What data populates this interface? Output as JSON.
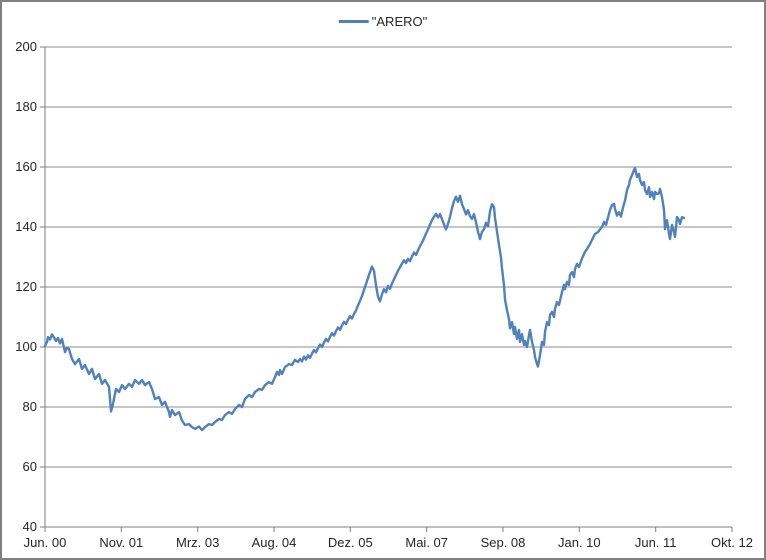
{
  "colors": {
    "line": "#4F81BD",
    "gridline": "#8E8E8E",
    "axis": "#7F7F7F",
    "border": "#7F7F7F",
    "text": "#262626",
    "background": "#FFFFFF"
  },
  "legend": {
    "label": "\"ARERO\""
  },
  "chart_data": {
    "type": "line",
    "title": "",
    "legend_position": "top-center",
    "grid": "horizontal",
    "y_axis": {
      "min": 40,
      "max": 200,
      "tick_interval": 20,
      "ticks": [
        200,
        180,
        160,
        140,
        120,
        100,
        80,
        60,
        40
      ]
    },
    "x_axis": {
      "unit": "time position along axis (0 = Jun 2000 ... 687 = Okt 2012)",
      "tick_positions": [
        0,
        76.3,
        152.7,
        229,
        305.3,
        381.7,
        458,
        534.3,
        610.7,
        687
      ],
      "tick_labels": [
        "Jun. 00",
        "Nov. 01",
        "Mrz. 03",
        "Aug. 04",
        "Dez. 05",
        "Mai. 07",
        "Sep. 08",
        "Jan. 10",
        "Jun. 11",
        "Okt. 12"
      ]
    },
    "series": [
      {
        "name": "\"ARERO\"",
        "color": "#4F81BD",
        "points": [
          [
            0,
            100.4
          ],
          [
            2,
            101.7
          ],
          [
            3,
            103.3
          ],
          [
            5,
            102.5
          ],
          [
            7,
            104.2
          ],
          [
            9,
            103.2
          ],
          [
            11,
            102.0
          ],
          [
            13,
            103.0
          ],
          [
            15,
            101.2
          ],
          [
            17,
            102.7
          ],
          [
            20,
            98.3
          ],
          [
            22,
            99.8
          ],
          [
            24,
            99.3
          ],
          [
            27,
            96.0
          ],
          [
            30,
            94.3
          ],
          [
            34,
            96.0
          ],
          [
            37,
            92.7
          ],
          [
            40,
            94.0
          ],
          [
            44,
            91.0
          ],
          [
            47,
            92.7
          ],
          [
            50,
            89.3
          ],
          [
            54,
            91.0
          ],
          [
            57,
            87.7
          ],
          [
            60,
            89.0
          ],
          [
            64,
            86.7
          ],
          [
            66,
            78.5
          ],
          [
            68,
            81.0
          ],
          [
            69,
            82.7
          ],
          [
            71,
            86.0
          ],
          [
            74,
            85.0
          ],
          [
            77,
            87.3
          ],
          [
            80,
            86.0
          ],
          [
            84,
            87.7
          ],
          [
            87,
            86.7
          ],
          [
            90,
            89.0
          ],
          [
            94,
            87.7
          ],
          [
            97,
            89.0
          ],
          [
            100,
            87.3
          ],
          [
            104,
            88.3
          ],
          [
            107,
            86.0
          ],
          [
            110,
            82.7
          ],
          [
            114,
            83.3
          ],
          [
            117,
            80.7
          ],
          [
            120,
            81.7
          ],
          [
            124,
            78.3
          ],
          [
            125,
            76.7
          ],
          [
            127,
            79.0
          ],
          [
            130,
            77.3
          ],
          [
            134,
            78.3
          ],
          [
            137,
            75.5
          ],
          [
            140,
            74.0
          ],
          [
            144,
            74.3
          ],
          [
            147,
            73.3
          ],
          [
            150,
            72.7
          ],
          [
            154,
            73.5
          ],
          [
            157,
            72.3
          ],
          [
            160,
            73.3
          ],
          [
            164,
            74.3
          ],
          [
            167,
            74.0
          ],
          [
            170,
            75.0
          ],
          [
            174,
            76.0
          ],
          [
            177,
            75.7
          ],
          [
            180,
            77.3
          ],
          [
            184,
            78.3
          ],
          [
            187,
            77.7
          ],
          [
            190,
            79.3
          ],
          [
            194,
            80.7
          ],
          [
            197,
            80.0
          ],
          [
            200,
            82.7
          ],
          [
            204,
            84.0
          ],
          [
            207,
            83.3
          ],
          [
            210,
            85.0
          ],
          [
            214,
            86.0
          ],
          [
            217,
            85.7
          ],
          [
            220,
            87.3
          ],
          [
            224,
            88.3
          ],
          [
            227,
            87.7
          ],
          [
            230,
            90.0
          ],
          [
            232,
            91.7
          ],
          [
            234,
            90.7
          ],
          [
            235,
            92.3
          ],
          [
            237,
            91.0
          ],
          [
            240,
            93.3
          ],
          [
            244,
            94.3
          ],
          [
            247,
            94.0
          ],
          [
            250,
            95.7
          ],
          [
            253,
            95.0
          ],
          [
            255,
            96.0
          ],
          [
            257,
            95.2
          ],
          [
            259,
            96.8
          ],
          [
            261,
            95.8
          ],
          [
            263,
            97.2
          ],
          [
            265,
            96.4
          ],
          [
            267,
            97.8
          ],
          [
            269,
            99.0
          ],
          [
            271,
            98.2
          ],
          [
            273,
            99.6
          ],
          [
            275,
            100.8
          ],
          [
            277,
            100.0
          ],
          [
            279,
            101.5
          ],
          [
            281,
            102.7
          ],
          [
            283,
            101.9
          ],
          [
            285,
            103.4
          ],
          [
            287,
            104.6
          ],
          [
            289,
            103.8
          ],
          [
            291,
            105.3
          ],
          [
            293,
            106.5
          ],
          [
            295,
            105.7
          ],
          [
            297,
            107.2
          ],
          [
            299,
            108.4
          ],
          [
            301,
            107.6
          ],
          [
            303,
            109.1
          ],
          [
            305,
            110.3
          ],
          [
            307,
            109.5
          ],
          [
            309,
            111.0
          ],
          [
            311,
            112.2
          ],
          [
            313,
            113.8
          ],
          [
            315,
            115.4
          ],
          [
            317,
            117.0
          ],
          [
            319,
            119.0
          ],
          [
            321,
            121.0
          ],
          [
            323,
            123.0
          ],
          [
            325,
            125.0
          ],
          [
            327,
            126.8
          ],
          [
            329,
            125.4
          ],
          [
            331,
            120.5
          ],
          [
            333,
            116.8
          ],
          [
            335,
            115.2
          ],
          [
            337,
            117.6
          ],
          [
            339,
            119.3
          ],
          [
            341,
            118.2
          ],
          [
            343,
            120.4
          ],
          [
            345,
            119.4
          ],
          [
            347,
            121.2
          ],
          [
            349,
            122.6
          ],
          [
            351,
            124.0
          ],
          [
            353,
            125.4
          ],
          [
            355,
            126.6
          ],
          [
            357,
            127.8
          ],
          [
            359,
            128.9
          ],
          [
            361,
            128.0
          ],
          [
            363,
            129.4
          ],
          [
            365,
            128.6
          ],
          [
            367,
            130.2
          ],
          [
            369,
            131.5
          ],
          [
            371,
            130.7
          ],
          [
            373,
            132.2
          ],
          [
            375,
            133.6
          ],
          [
            377,
            134.8
          ],
          [
            379,
            136.2
          ],
          [
            381,
            137.8
          ],
          [
            383,
            139.2
          ],
          [
            385,
            140.8
          ],
          [
            387,
            142.3
          ],
          [
            389,
            143.4
          ],
          [
            391,
            144.4
          ],
          [
            393,
            143.2
          ],
          [
            395,
            144.3
          ],
          [
            397,
            142.6
          ],
          [
            399,
            140.8
          ],
          [
            401,
            139.2
          ],
          [
            403,
            141.0
          ],
          [
            405,
            143.4
          ],
          [
            407,
            146.3
          ],
          [
            409,
            148.6
          ],
          [
            411,
            150.1
          ],
          [
            413,
            148.4
          ],
          [
            415,
            150.4
          ],
          [
            417,
            147.6
          ],
          [
            419,
            146.0
          ],
          [
            421,
            144.2
          ],
          [
            423,
            145.6
          ],
          [
            425,
            143.6
          ],
          [
            427,
            142.7
          ],
          [
            429,
            144.3
          ],
          [
            431,
            141.6
          ],
          [
            433,
            138.4
          ],
          [
            435,
            136.0
          ],
          [
            437,
            138.4
          ],
          [
            439,
            139.3
          ],
          [
            441,
            141.4
          ],
          [
            443,
            140.2
          ],
          [
            445,
            145.2
          ],
          [
            447,
            147.6
          ],
          [
            449,
            146.6
          ],
          [
            450,
            143.0
          ],
          [
            452,
            138.5
          ],
          [
            454,
            134.0
          ],
          [
            456,
            129.8
          ],
          [
            457,
            126.2
          ],
          [
            459,
            120.5
          ],
          [
            460,
            115.8
          ],
          [
            462,
            112.3
          ],
          [
            464,
            109.3
          ],
          [
            465,
            106.2
          ],
          [
            467,
            108.3
          ],
          [
            469,
            104.3
          ],
          [
            470,
            106.7
          ],
          [
            472,
            102.7
          ],
          [
            474,
            105.7
          ],
          [
            475,
            101.7
          ],
          [
            477,
            104.3
          ],
          [
            479,
            100.7
          ],
          [
            480,
            102.0
          ],
          [
            482,
            100.0
          ],
          [
            484,
            104.0
          ],
          [
            485,
            105.7
          ],
          [
            487,
            101.7
          ],
          [
            489,
            99.0
          ],
          [
            490,
            96.7
          ],
          [
            492,
            94.3
          ],
          [
            493,
            93.5
          ],
          [
            495,
            97.3
          ],
          [
            497,
            101.7
          ],
          [
            499,
            100.7
          ],
          [
            500,
            105.0
          ],
          [
            502,
            108.3
          ],
          [
            504,
            107.3
          ],
          [
            505,
            110.7
          ],
          [
            507,
            111.7
          ],
          [
            509,
            110.0
          ],
          [
            510,
            112.7
          ],
          [
            512,
            115.0
          ],
          [
            514,
            114.0
          ],
          [
            517,
            118.3
          ],
          [
            519,
            120.7
          ],
          [
            520,
            119.3
          ],
          [
            522,
            121.7
          ],
          [
            524,
            120.7
          ],
          [
            525,
            124.0
          ],
          [
            527,
            125.0
          ],
          [
            529,
            123.3
          ],
          [
            530,
            126.0
          ],
          [
            532,
            127.7
          ],
          [
            534,
            126.7
          ],
          [
            537,
            129.5
          ],
          [
            540,
            131.7
          ],
          [
            542,
            132.7
          ],
          [
            545,
            134.3
          ],
          [
            547,
            135.7
          ],
          [
            550,
            137.7
          ],
          [
            553,
            138.3
          ],
          [
            555,
            139.2
          ],
          [
            557,
            140.0
          ],
          [
            559,
            141.7
          ],
          [
            561,
            140.7
          ],
          [
            563,
            143.2
          ],
          [
            565,
            145.7
          ],
          [
            567,
            147.3
          ],
          [
            569,
            147.7
          ],
          [
            570,
            146.0
          ],
          [
            572,
            143.8
          ],
          [
            574,
            144.9
          ],
          [
            576,
            143.5
          ],
          [
            578,
            146.5
          ],
          [
            580,
            148.8
          ],
          [
            582,
            152.3
          ],
          [
            584,
            154.0
          ],
          [
            585,
            155.7
          ],
          [
            587,
            157.3
          ],
          [
            589,
            159.0
          ],
          [
            590,
            159.6
          ],
          [
            592,
            156.7
          ],
          [
            594,
            157.7
          ],
          [
            595,
            155.7
          ],
          [
            597,
            154.0
          ],
          [
            599,
            155.0
          ],
          [
            600,
            152.3
          ],
          [
            602,
            151.0
          ],
          [
            604,
            153.3
          ],
          [
            605,
            150.0
          ],
          [
            607,
            151.7
          ],
          [
            609,
            149.3
          ],
          [
            610,
            151.7
          ],
          [
            612,
            151.0
          ],
          [
            614,
            151.2
          ],
          [
            615,
            152.7
          ],
          [
            617,
            150.0
          ],
          [
            619,
            145.7
          ],
          [
            620,
            139.3
          ],
          [
            622,
            142.3
          ],
          [
            624,
            137.7
          ],
          [
            625,
            136.0
          ],
          [
            627,
            140.7
          ],
          [
            629,
            138.3
          ],
          [
            630,
            136.7
          ],
          [
            632,
            143.3
          ],
          [
            634,
            142.3
          ],
          [
            635,
            141.0
          ],
          [
            637,
            143.3
          ],
          [
            639,
            143.0
          ]
        ]
      }
    ]
  }
}
